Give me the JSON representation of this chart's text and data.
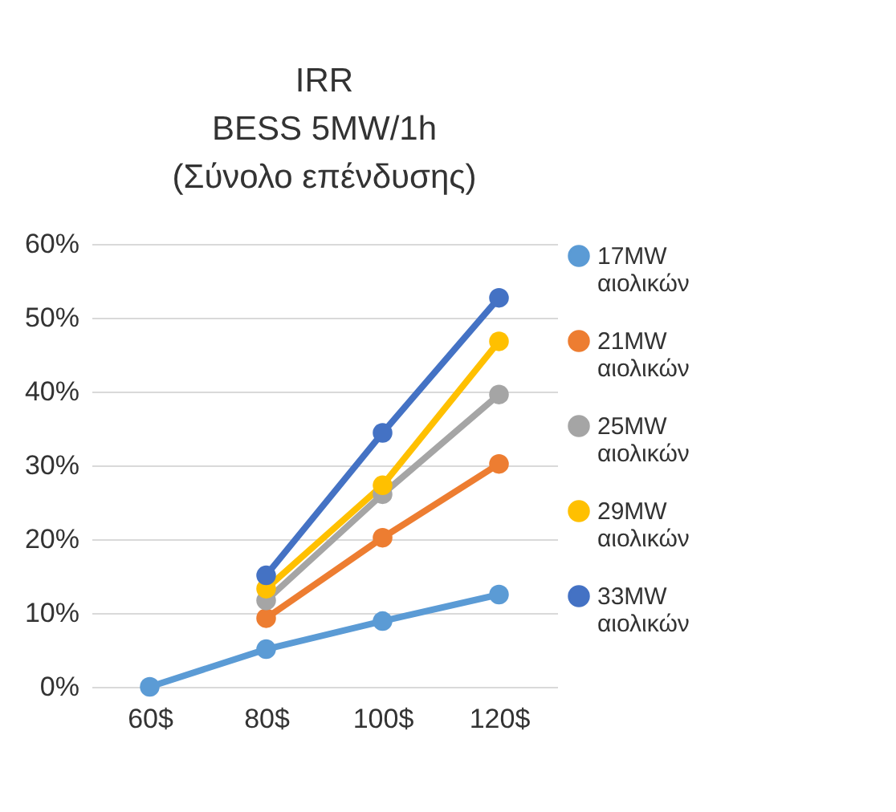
{
  "chart_data": {
    "type": "line",
    "title": "IRR\nBESS 5MW/1h\n(Σύνολο επένδυσης)",
    "categories": [
      "60$",
      "80$",
      "100$",
      "120$"
    ],
    "series": [
      {
        "name": "17MW αιολικών",
        "color": "#5b9bd5",
        "values": [
          0,
          5.1,
          8.9,
          12.5
        ]
      },
      {
        "name": "21MW αιολικών",
        "color": "#ed7d31",
        "values": [
          null,
          9.3,
          20.2,
          30.2
        ]
      },
      {
        "name": "25MW αιολικών",
        "color": "#a5a5a5",
        "values": [
          null,
          11.7,
          26.1,
          39.6
        ]
      },
      {
        "name": "29MW αιολικών",
        "color": "#ffc000",
        "values": [
          null,
          13.3,
          27.3,
          46.8
        ]
      },
      {
        "name": "33MW αιολικών",
        "color": "#4472c4",
        "values": [
          null,
          15.1,
          34.4,
          52.7
        ]
      }
    ],
    "ylim": [
      0,
      60
    ],
    "yticks": [
      {
        "value": 0,
        "label": "0%"
      },
      {
        "value": 10,
        "label": "10%"
      },
      {
        "value": 20,
        "label": "20%"
      },
      {
        "value": 30,
        "label": "30%"
      },
      {
        "value": 40,
        "label": "40%"
      },
      {
        "value": 50,
        "label": "50%"
      },
      {
        "value": 60,
        "label": "60%"
      }
    ],
    "grid": "y",
    "legend": "right",
    "marker": "circle",
    "line_style": "solid"
  }
}
